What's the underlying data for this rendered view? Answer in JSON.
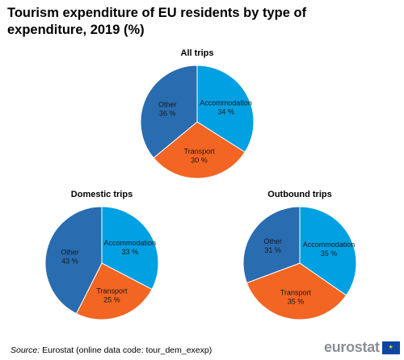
{
  "title": "Tourism expenditure of EU residents by type of expenditure, 2019 (%)",
  "source_label": "Source:",
  "source_text": "Eurostat (online data code: tour_dem_exexp)",
  "logo_text": "eurostat",
  "colors": {
    "Accommodation": "#00a0e3",
    "Transport": "#f26522",
    "Other": "#2a6cb0"
  },
  "chart_data": [
    {
      "type": "pie",
      "title": "All trips",
      "labels": [
        "Accommodation",
        "Transport",
        "Other"
      ],
      "values": [
        34,
        30,
        36
      ],
      "unit": "%"
    },
    {
      "type": "pie",
      "title": "Domestic trips",
      "labels": [
        "Accommodation",
        "Transport",
        "Other"
      ],
      "values": [
        33,
        25,
        43
      ],
      "unit": "%"
    },
    {
      "type": "pie",
      "title": "Outbound trips",
      "labels": [
        "Accommodation",
        "Transport",
        "Other"
      ],
      "values": [
        35,
        35,
        31
      ],
      "unit": "%"
    }
  ]
}
